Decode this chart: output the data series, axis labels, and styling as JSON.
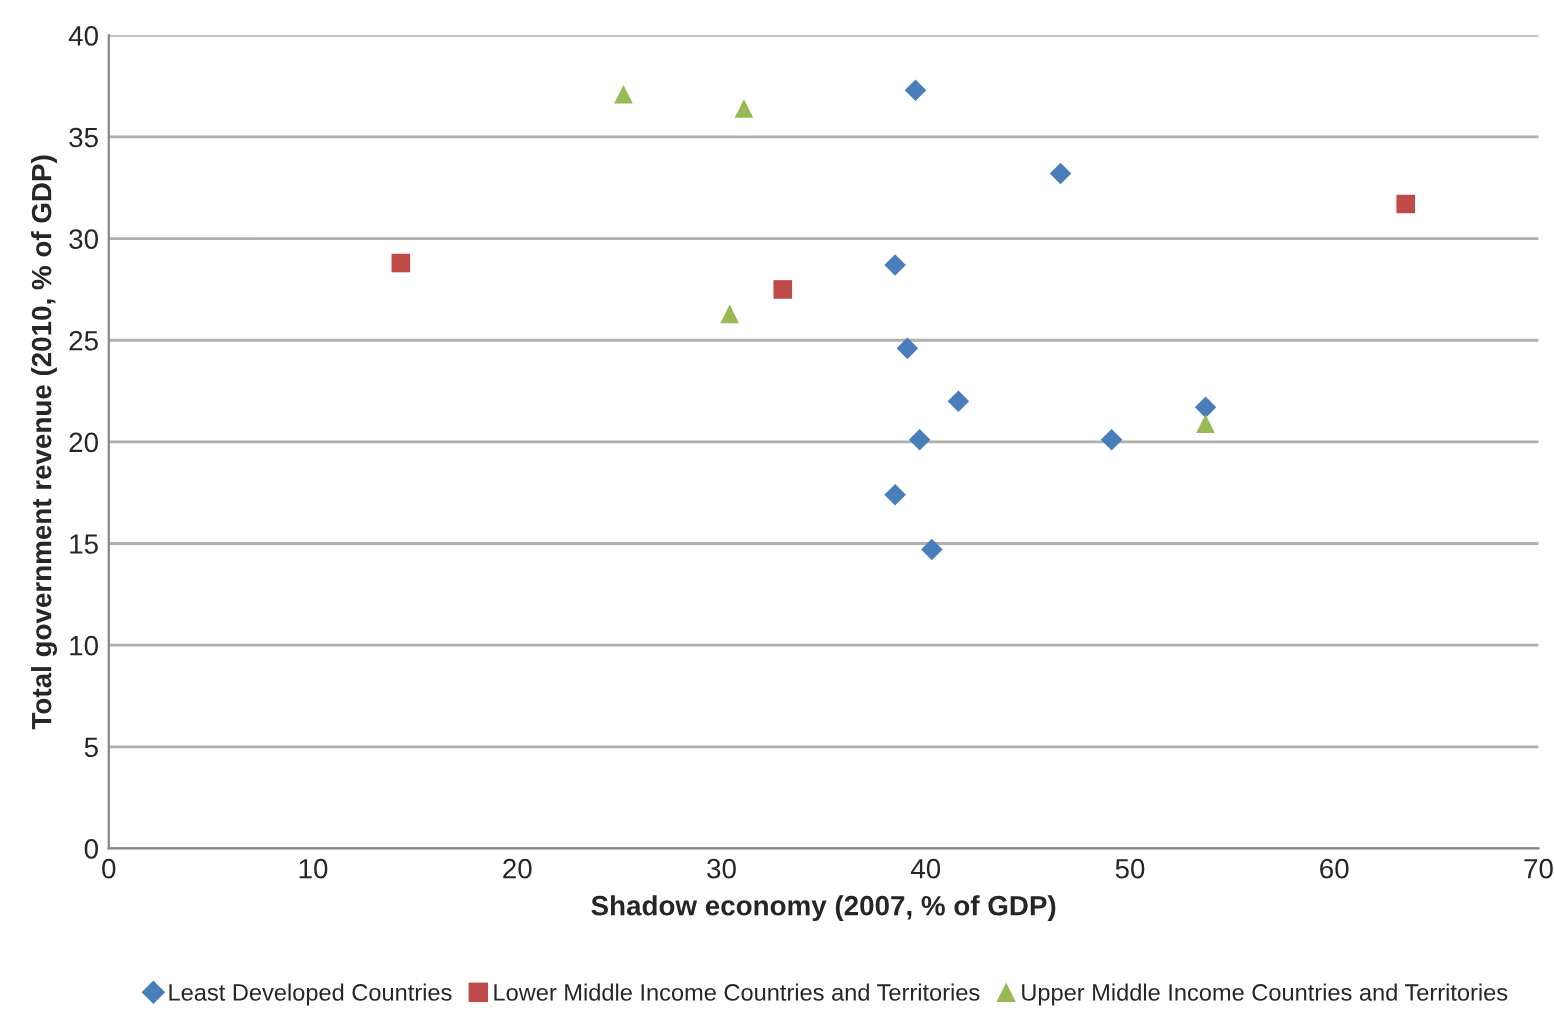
{
  "chart_data": {
    "type": "scatter",
    "xlabel": "Shadow economy (2007, % of GDP)",
    "ylabel": "Total government revenue (2010, % of GDP)",
    "xlim": [
      0,
      70
    ],
    "xticks": [
      0,
      10,
      20,
      30,
      40,
      50,
      60,
      70
    ],
    "ylim": [
      0,
      40
    ],
    "yticks": [
      0,
      5,
      10,
      15,
      20,
      25,
      30,
      35,
      40
    ],
    "grid": "y",
    "legend": "bottom",
    "series": [
      {
        "name": "Least Developed Countries",
        "color": "#4a7ebb",
        "marker": "diamond",
        "x": [
          39.5,
          46.6,
          38.5,
          39.1,
          41.6,
          39.7,
          49.1,
          53.7,
          38.5,
          40.3
        ],
        "values": [
          37.3,
          33.2,
          28.7,
          24.6,
          22.0,
          20.1,
          20.1,
          21.7,
          17.4,
          14.7
        ]
      },
      {
        "name": "Lower Middle Income Countries and Territories",
        "color": "#be4b48",
        "marker": "square",
        "x": [
          14.3,
          33.0,
          63.5
        ],
        "values": [
          28.8,
          27.5,
          31.7
        ]
      },
      {
        "name": "Upper Middle Income Countries and Territories",
        "color": "#98b954",
        "marker": "triangle",
        "x": [
          25.2,
          31.1,
          30.4,
          53.7
        ],
        "values": [
          37.1,
          36.4,
          26.3,
          20.9
        ]
      }
    ]
  }
}
